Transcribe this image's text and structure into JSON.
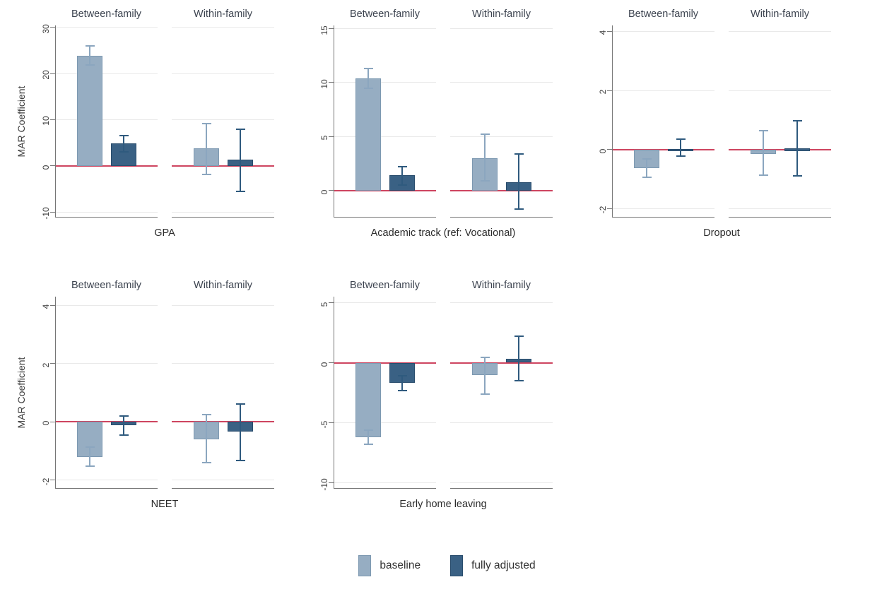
{
  "figure": {
    "y_axis_title": "MAR Coefficient",
    "subpanel_headers": [
      "Between-family",
      "Within-family"
    ],
    "legend": [
      {
        "label": "baseline",
        "color": "#96adc2",
        "border": "#7d99b1",
        "ci_color": "#8ba6bf"
      },
      {
        "label": "fully adjusted",
        "color": "#3a6184",
        "border": "#294c6c",
        "ci_color": "#2f5a7e"
      }
    ],
    "zero_line_color": "#ce4560",
    "grid_color": "#e9e9e9",
    "axis_color": "#767676"
  },
  "chart_data": [
    {
      "type": "bar",
      "title": "GPA",
      "row": 0,
      "show_ylabel": true,
      "ylabel": "MAR Coefficient",
      "ylim": [
        -11.2,
        30.4
      ],
      "yticks": [
        -10,
        0,
        10,
        20,
        30
      ],
      "groups": [
        {
          "name": "Between-family",
          "series": [
            {
              "name": "baseline",
              "value": 23.9,
              "ci": [
                21.9,
                25.9
              ]
            },
            {
              "name": "fully adjusted",
              "value": 4.8,
              "ci": [
                3.0,
                6.6
              ]
            }
          ]
        },
        {
          "name": "Within-family",
          "series": [
            {
              "name": "baseline",
              "value": 3.8,
              "ci": [
                -1.9,
                9.2
              ]
            },
            {
              "name": "fully adjusted",
              "value": 1.3,
              "ci": [
                -5.5,
                7.9
              ]
            }
          ]
        }
      ]
    },
    {
      "type": "bar",
      "title": "Academic track (ref: Vocational)",
      "row": 0,
      "show_ylabel": false,
      "ylim": [
        -2.5,
        15.3
      ],
      "yticks": [
        0,
        5,
        10,
        15
      ],
      "groups": [
        {
          "name": "Between-family",
          "series": [
            {
              "name": "baseline",
              "value": 10.4,
              "ci": [
                9.5,
                11.3
              ]
            },
            {
              "name": "fully adjusted",
              "value": 1.4,
              "ci": [
                0.5,
                2.2
              ]
            }
          ]
        },
        {
          "name": "Within-family",
          "series": [
            {
              "name": "baseline",
              "value": 3.0,
              "ci": [
                0.9,
                5.2
              ]
            },
            {
              "name": "fully adjusted",
              "value": 0.8,
              "ci": [
                -1.7,
                3.4
              ]
            }
          ]
        }
      ]
    },
    {
      "type": "bar",
      "title": "Dropout",
      "row": 0,
      "show_ylabel": false,
      "ylim": [
        -2.3,
        4.2
      ],
      "yticks": [
        -2,
        0,
        2,
        4
      ],
      "groups": [
        {
          "name": "Between-family",
          "series": [
            {
              "name": "baseline",
              "value": -0.63,
              "ci": [
                -0.94,
                -0.31
              ]
            },
            {
              "name": "fully adjusted",
              "value": 0.02,
              "ci": [
                -0.22,
                0.35
              ]
            }
          ]
        },
        {
          "name": "Within-family",
          "series": [
            {
              "name": "baseline",
              "value": -0.14,
              "ci": [
                -0.86,
                0.65
              ]
            },
            {
              "name": "fully adjusted",
              "value": 0.03,
              "ci": [
                -0.88,
                0.97
              ]
            }
          ]
        }
      ]
    },
    {
      "type": "bar",
      "title": "NEET",
      "row": 1,
      "show_ylabel": true,
      "ylabel": "MAR Coefficient",
      "ylim": [
        -2.3,
        4.3
      ],
      "yticks": [
        -2,
        0,
        2,
        4
      ],
      "groups": [
        {
          "name": "Between-family",
          "series": [
            {
              "name": "baseline",
              "value": -1.2,
              "ci": [
                -1.53,
                -0.86
              ]
            },
            {
              "name": "fully adjusted",
              "value": -0.12,
              "ci": [
                -0.45,
                0.2
              ]
            }
          ]
        },
        {
          "name": "Within-family",
          "series": [
            {
              "name": "baseline",
              "value": -0.6,
              "ci": [
                -1.4,
                0.24
              ]
            },
            {
              "name": "fully adjusted",
              "value": -0.34,
              "ci": [
                -1.33,
                0.62
              ]
            }
          ]
        }
      ]
    },
    {
      "type": "bar",
      "title": "Early home leaving",
      "row": 1,
      "show_ylabel": false,
      "ylim": [
        -10.5,
        5.5
      ],
      "yticks": [
        -10,
        -5,
        0,
        5
      ],
      "groups": [
        {
          "name": "Between-family",
          "series": [
            {
              "name": "baseline",
              "value": -6.2,
              "ci": [
                -6.8,
                -5.6
              ]
            },
            {
              "name": "fully adjusted",
              "value": -1.7,
              "ci": [
                -2.3,
                -1.1
              ]
            }
          ]
        },
        {
          "name": "Within-family",
          "series": [
            {
              "name": "baseline",
              "value": -1.05,
              "ci": [
                -2.6,
                0.45
              ]
            },
            {
              "name": "fully adjusted",
              "value": 0.35,
              "ci": [
                -1.5,
                2.2
              ]
            }
          ]
        }
      ]
    }
  ]
}
